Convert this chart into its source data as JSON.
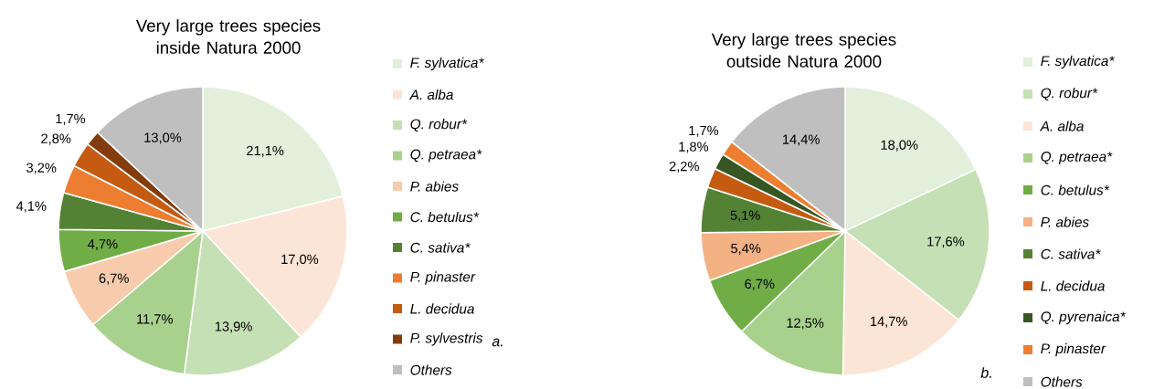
{
  "chart_data": [
    {
      "type": "pie",
      "title": "Very large trees species inside Natura 2000",
      "categories": [
        "F. sylvatica*",
        "A. alba",
        "Q. robur*",
        "Q. petraea*",
        "P. abies",
        "C. betulus*",
        "C. sativa*",
        "P. pinaster",
        "L. decidua",
        "P. sylvestris",
        "Others"
      ],
      "values": [
        21.1,
        17.0,
        13.9,
        11.7,
        6.7,
        4.7,
        4.1,
        3.2,
        2.8,
        1.7,
        13.0
      ],
      "value_labels": [
        "21,1%",
        "17,0%",
        "13,9%",
        "11,7%",
        "6,7%",
        "4,7%",
        "4,1%",
        "3,2%",
        "2,8%",
        "1,7%",
        "13,0%"
      ],
      "colors": [
        "#e2efda",
        "#fbe5d6",
        "#c5e0b4",
        "#a9d18e",
        "#f8cbad",
        "#70ad47",
        "#548235",
        "#ed7d31",
        "#c55a11",
        "#843c0c",
        "#bfbfbf"
      ],
      "legend": "right",
      "annotations": [
        "a."
      ]
    },
    {
      "type": "pie",
      "title": "Very large trees species outside Natura 2000",
      "categories": [
        "F. sylvatica*",
        "Q. robur*",
        "A. alba",
        "Q. petraea*",
        "C. betulus*",
        "P. abies",
        "C. sativa*",
        "L. decidua",
        "Q. pyrenaica*",
        "P. pinaster",
        "Others"
      ],
      "values": [
        18.0,
        17.6,
        14.7,
        12.5,
        6.7,
        5.4,
        5.1,
        2.2,
        1.8,
        1.7,
        14.4
      ],
      "value_labels": [
        "18,0%",
        "17,6%",
        "14,7%",
        "12,5%",
        "6,7%",
        "5,4%",
        "5,1%",
        "2,2%",
        "1,8%",
        "1,7%",
        "14,4%"
      ],
      "colors": [
        "#e2efda",
        "#c5e0b4",
        "#fbe5d6",
        "#a9d18e",
        "#70ad47",
        "#f4b183",
        "#548235",
        "#c55a11",
        "#375623",
        "#ed7d31",
        "#bfbfbf"
      ],
      "legend": "right",
      "annotations": [
        "b."
      ]
    }
  ]
}
